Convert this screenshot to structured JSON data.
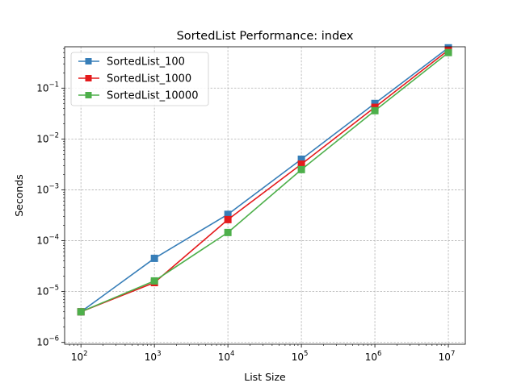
{
  "chart_data": {
    "type": "line",
    "title": "SortedList Performance: index",
    "xlabel": "List Size",
    "ylabel": "Seconds",
    "xscale": "log",
    "yscale": "log",
    "xlim": [
      60,
      17000000
    ],
    "ylim": [
      9.2e-07,
      0.65
    ],
    "x": [
      100,
      1000,
      10000,
      100000,
      1000000,
      10000000
    ],
    "x_ticks": [
      {
        "value": 100,
        "base": "10",
        "exp": "2"
      },
      {
        "value": 1000,
        "base": "10",
        "exp": "3"
      },
      {
        "value": 10000,
        "base": "10",
        "exp": "4"
      },
      {
        "value": 100000,
        "base": "10",
        "exp": "5"
      },
      {
        "value": 1000000,
        "base": "10",
        "exp": "6"
      },
      {
        "value": 10000000,
        "base": "10",
        "exp": "7"
      }
    ],
    "y_ticks": [
      {
        "value": 1e-06,
        "base": "10",
        "exp": "−6"
      },
      {
        "value": 1e-05,
        "base": "10",
        "exp": "−5"
      },
      {
        "value": 0.0001,
        "base": "10",
        "exp": "−4"
      },
      {
        "value": 0.001,
        "base": "10",
        "exp": "−3"
      },
      {
        "value": 0.01,
        "base": "10",
        "exp": "−2"
      },
      {
        "value": 0.1,
        "base": "10",
        "exp": "−1"
      }
    ],
    "grid": true,
    "legend": "top-left",
    "series": [
      {
        "name": "SortedList_100",
        "color": "#377eb8",
        "marker": "square",
        "values": [
          4e-06,
          4.5e-05,
          0.00033,
          0.004,
          0.05,
          0.62
        ]
      },
      {
        "name": "SortedList_1000",
        "color": "#e41a1c",
        "marker": "square",
        "values": [
          4e-06,
          1.5e-05,
          0.00026,
          0.0032,
          0.042,
          0.56
        ]
      },
      {
        "name": "SortedList_10000",
        "color": "#4daf4a",
        "marker": "square",
        "values": [
          4e-06,
          1.62e-05,
          0.000145,
          0.0025,
          0.036,
          0.5
        ]
      }
    ]
  }
}
